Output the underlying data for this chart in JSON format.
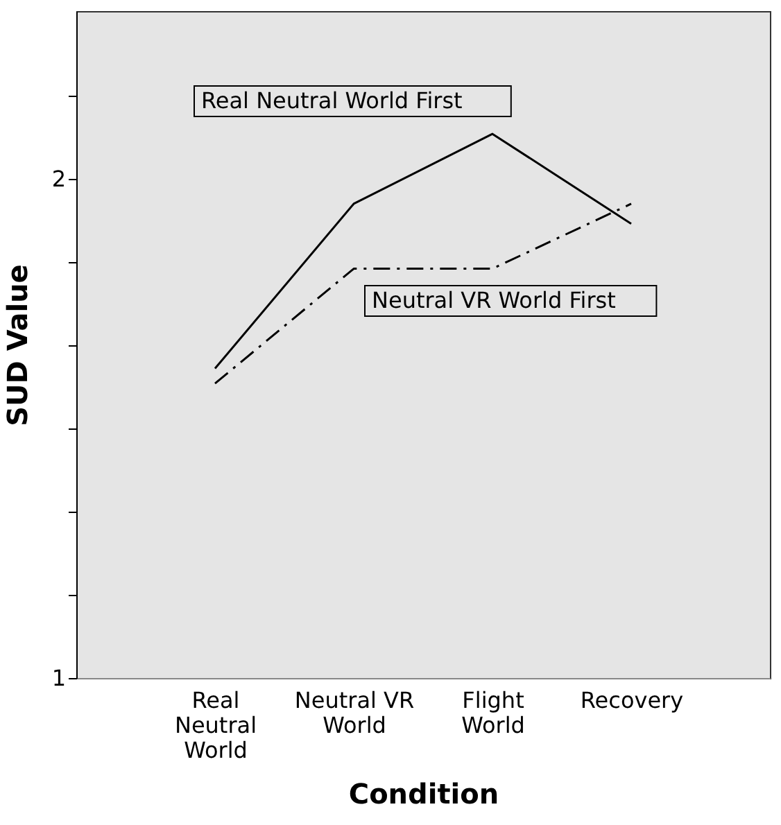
{
  "chart_data": {
    "type": "line",
    "xlabel": "Condition",
    "ylabel": "SUD Value",
    "categories": [
      "Real Neutral World",
      "Neutral VR World",
      "Flight World",
      "Recovery"
    ],
    "series": [
      {
        "name": "Real Neutral World First",
        "color": "#000000",
        "line_style": "solid",
        "values": [
          1.62,
          1.95,
          2.09,
          1.91
        ]
      },
      {
        "name": "Neutral VR World First",
        "color": "#000000",
        "line_style": "dashdot",
        "values": [
          1.59,
          1.82,
          1.82,
          1.95
        ]
      }
    ],
    "ylim": [
      1,
      2.336
    ],
    "yticks": [
      1,
      {
        "value": 1.1667,
        "label": null
      },
      {
        "value": 1.3333,
        "label": null
      },
      {
        "value": 1.5,
        "label": null
      },
      {
        "value": 1.6667,
        "label": null
      },
      {
        "value": 1.8333,
        "label": null
      },
      2,
      {
        "value": 2.1667,
        "label": null
      }
    ],
    "grid": false,
    "marker": "none"
  }
}
